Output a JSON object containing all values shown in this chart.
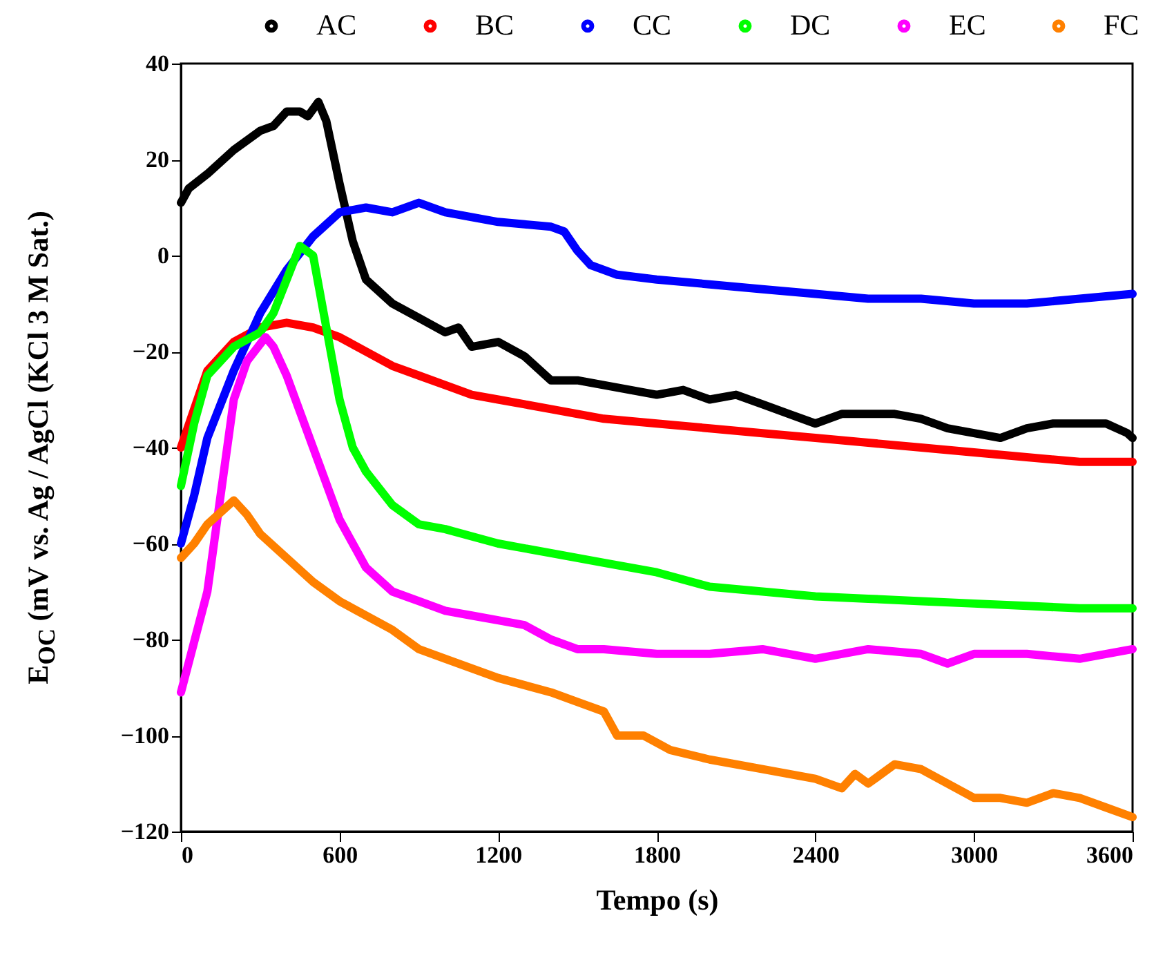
{
  "chart_data": {
    "type": "line",
    "xlabel": "Tempo (s)",
    "ylabel": "E$_{OC}$ (mV vs. Ag / AgCl (KCl 3 M Sat.)",
    "xlim": [
      0,
      3600
    ],
    "xticks": [
      0,
      600,
      1200,
      1800,
      2400,
      3000,
      3600
    ],
    "ylim": [
      -120,
      40
    ],
    "yticks": [
      -120,
      -100,
      -80,
      -60,
      -40,
      -20,
      0,
      20,
      40
    ],
    "grid": false,
    "legend": "top",
    "marker": "none",
    "line_style": "solid",
    "series": [
      {
        "name": "AC",
        "color": "#000000",
        "x": [
          0,
          30,
          100,
          200,
          300,
          350,
          400,
          450,
          480,
          520,
          550,
          600,
          650,
          700,
          800,
          900,
          1000,
          1050,
          1100,
          1200,
          1300,
          1400,
          1500,
          1600,
          1700,
          1800,
          1900,
          2000,
          2100,
          2200,
          2300,
          2400,
          2500,
          2600,
          2700,
          2800,
          2900,
          3000,
          3100,
          3200,
          3300,
          3400,
          3500,
          3580,
          3600
        ],
        "values": [
          11,
          14,
          17,
          22,
          26,
          27,
          30,
          30,
          29,
          32,
          28,
          15,
          3,
          -5,
          -10,
          -13,
          -16,
          -15,
          -19,
          -18,
          -21,
          -26,
          -26,
          -27,
          -28,
          -29,
          -28,
          -30,
          -29,
          -31,
          -33,
          -35,
          -33,
          -33,
          -33,
          -34,
          -36,
          -37,
          -38,
          -36,
          -35,
          -35,
          -35,
          -37,
          -38
        ]
      },
      {
        "name": "BC",
        "color": "#ff0000",
        "x": [
          0,
          50,
          100,
          200,
          300,
          400,
          500,
          600,
          700,
          800,
          900,
          1000,
          1100,
          1200,
          1300,
          1400,
          1600,
          1800,
          2000,
          2200,
          2400,
          2600,
          2800,
          3000,
          3200,
          3400,
          3600
        ],
        "values": [
          -40,
          -32,
          -24,
          -18,
          -15,
          -14,
          -15,
          -17,
          -20,
          -23,
          -25,
          -27,
          -29,
          -30,
          -31,
          -32,
          -34,
          -35,
          -36,
          -37,
          -38,
          -39,
          -40,
          -41,
          -42,
          -43,
          -43
        ]
      },
      {
        "name": "CC",
        "color": "#0000ff",
        "x": [
          0,
          50,
          100,
          200,
          300,
          400,
          500,
          600,
          700,
          800,
          900,
          1000,
          1100,
          1200,
          1300,
          1400,
          1450,
          1500,
          1550,
          1650,
          1800,
          2000,
          2200,
          2400,
          2600,
          2800,
          3000,
          3200,
          3400,
          3600
        ],
        "values": [
          -60,
          -50,
          -38,
          -24,
          -12,
          -3,
          4,
          9,
          10,
          9,
          11,
          9,
          8,
          7,
          6.5,
          6,
          5,
          1,
          -2,
          -4,
          -5,
          -6,
          -7,
          -8,
          -9,
          -9,
          -10,
          -10,
          -9,
          -8
        ]
      },
      {
        "name": "DC",
        "color": "#00ff00",
        "x": [
          0,
          50,
          100,
          200,
          300,
          350,
          400,
          450,
          500,
          550,
          600,
          650,
          700,
          800,
          900,
          1000,
          1200,
          1400,
          1600,
          1800,
          2000,
          2200,
          2400,
          2600,
          2800,
          3000,
          3200,
          3400,
          3600
        ],
        "values": [
          -48,
          -35,
          -25,
          -19,
          -16,
          -12,
          -5,
          2,
          0,
          -15,
          -30,
          -40,
          -45,
          -52,
          -56,
          -57,
          -60,
          -62,
          -64,
          -66,
          -69,
          -70,
          -71,
          -71.5,
          -72,
          -72.5,
          -73,
          -73.5,
          -73.5
        ]
      },
      {
        "name": "EC",
        "color": "#ff00ff",
        "x": [
          0,
          100,
          150,
          200,
          250,
          320,
          350,
          400,
          500,
          600,
          700,
          800,
          900,
          1000,
          1100,
          1200,
          1300,
          1400,
          1500,
          1600,
          1800,
          2000,
          2200,
          2400,
          2600,
          2800,
          2900,
          3000,
          3200,
          3400,
          3500,
          3600
        ],
        "values": [
          -91,
          -70,
          -50,
          -30,
          -22,
          -17,
          -19,
          -25,
          -40,
          -55,
          -65,
          -70,
          -72,
          -74,
          -75,
          -76,
          -77,
          -80,
          -82,
          -82,
          -83,
          -83,
          -82,
          -84,
          -82,
          -83,
          -85,
          -83,
          -83,
          -84,
          -83,
          -82
        ]
      },
      {
        "name": "FC",
        "color": "#ff8000",
        "x": [
          0,
          50,
          100,
          200,
          250,
          300,
          400,
          500,
          600,
          700,
          800,
          900,
          1000,
          1200,
          1400,
          1500,
          1600,
          1650,
          1750,
          1850,
          2000,
          2200,
          2400,
          2500,
          2550,
          2600,
          2700,
          2800,
          2900,
          3000,
          3100,
          3200,
          3300,
          3400,
          3500,
          3600
        ],
        "values": [
          -63,
          -60,
          -56,
          -51,
          -54,
          -58,
          -63,
          -68,
          -72,
          -75,
          -78,
          -82,
          -84,
          -88,
          -91,
          -93,
          -95,
          -100,
          -100,
          -103,
          -105,
          -107,
          -109,
          -111,
          -108,
          -110,
          -106,
          -107,
          -110,
          -113,
          -113,
          -114,
          -112,
          -113,
          -115,
          -117
        ]
      }
    ]
  }
}
